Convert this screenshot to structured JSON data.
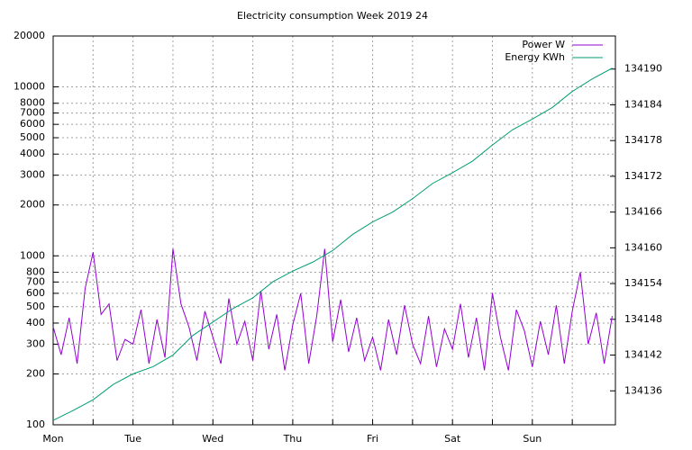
{
  "chart_data": {
    "type": "line",
    "title": "Electricity consumption Week 2019 24",
    "xlim": [
      0,
      7.04
    ],
    "xticks": [
      {
        "value": 0,
        "label": "Mon"
      },
      {
        "value": 1,
        "label": "Tue"
      },
      {
        "value": 2,
        "label": "Wed"
      },
      {
        "value": 3,
        "label": "Thu"
      },
      {
        "value": 4,
        "label": "Fri"
      },
      {
        "value": 5,
        "label": "Sat"
      },
      {
        "value": 6,
        "label": "Sun"
      }
    ],
    "xminorticks": [
      0.5,
      1.5,
      2.5,
      3.5,
      4.5,
      5.5,
      6.5
    ],
    "ylim": [
      100,
      20000
    ],
    "ylog": true,
    "yticks": [
      100,
      200,
      300,
      400,
      500,
      600,
      700,
      800,
      1000,
      2000,
      3000,
      4000,
      5000,
      6000,
      7000,
      8000,
      10000,
      20000
    ],
    "y2lim": [
      134130.3,
      134195.55
    ],
    "y2ticks": [
      134136,
      134142,
      134148,
      134154,
      134160,
      134166,
      134172,
      134178,
      134184,
      134190
    ],
    "grid": true,
    "legend": "top-right",
    "series": [
      {
        "name": "Power W",
        "color": "#9400d3",
        "x": [
          0,
          0.1,
          0.2,
          0.3,
          0.4,
          0.5,
          0.6,
          0.7,
          0.8,
          0.9,
          1,
          1.1,
          1.2,
          1.3,
          1.4,
          1.5,
          1.6,
          1.7,
          1.8,
          1.9,
          2,
          2.1,
          2.2,
          2.3,
          2.4,
          2.5,
          2.6,
          2.7,
          2.8,
          2.9,
          3,
          3.1,
          3.2,
          3.3,
          3.4,
          3.5,
          3.6,
          3.7,
          3.8,
          3.9,
          4,
          4.1,
          4.2,
          4.3,
          4.4,
          4.5,
          4.6,
          4.7,
          4.8,
          4.9,
          5,
          5.1,
          5.2,
          5.3,
          5.4,
          5.5,
          5.6,
          5.7,
          5.8,
          5.9,
          6,
          6.1,
          6.2,
          6.3,
          6.4,
          6.5,
          6.6,
          6.7,
          6.8,
          6.9,
          7
        ],
        "values": [
          380,
          260,
          430,
          230,
          640,
          1050,
          450,
          520,
          240,
          320,
          300,
          480,
          230,
          420,
          250,
          1100,
          520,
          380,
          240,
          470,
          330,
          230,
          560,
          300,
          410,
          240,
          620,
          280,
          450,
          210,
          390,
          600,
          230,
          440,
          1100,
          310,
          550,
          270,
          430,
          240,
          330,
          210,
          420,
          260,
          510,
          300,
          230,
          440,
          220,
          370,
          280,
          520,
          250,
          430,
          210,
          600,
          330,
          210,
          480,
          360,
          220,
          410,
          260,
          510,
          230,
          470,
          800,
          300,
          460,
          230,
          440
        ]
      },
      {
        "name": "Energy KWh",
        "color": "#009e73",
        "axis": "y2",
        "x": [
          0,
          0.25,
          0.5,
          0.75,
          1,
          1.25,
          1.5,
          1.75,
          2,
          2.25,
          2.5,
          2.75,
          3,
          3.25,
          3.5,
          3.75,
          4,
          4.25,
          4.5,
          4.75,
          5,
          5.25,
          5.5,
          5.75,
          6,
          6.25,
          6.5,
          6.75,
          7
        ],
        "values": [
          134131.05,
          134132.7,
          134134.5,
          134137.05,
          134138.85,
          134140.05,
          134142.0,
          134145.3,
          134147.55,
          134149.8,
          134151.6,
          134154.3,
          134156.1,
          134157.6,
          134159.55,
          134162.25,
          134164.35,
          134166.0,
          134168.25,
          134170.8,
          134172.6,
          134174.55,
          134177.25,
          134179.8,
          134181.6,
          134183.55,
          134186.25,
          134188.35,
          134190.15
        ]
      }
    ]
  }
}
